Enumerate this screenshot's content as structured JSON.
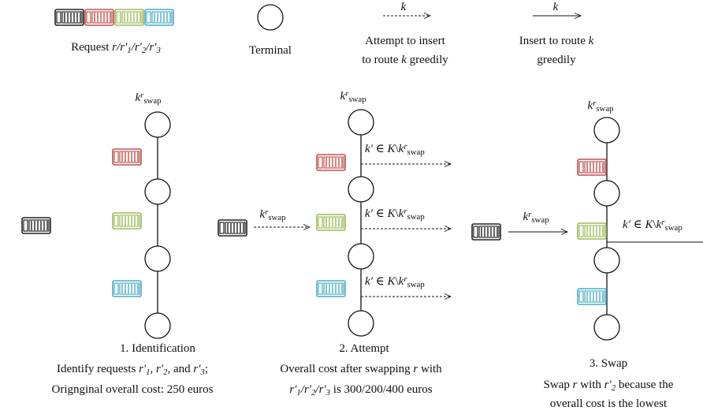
{
  "legend": {
    "request": [
      "Request ",
      "r",
      "/",
      "r'",
      "1",
      "/",
      "r'",
      "2",
      "/",
      "r'",
      "3"
    ],
    "terminal": "Terminal",
    "attempt": {
      "k": "k",
      "line1": "Attempt to insert",
      "line2": [
        "to route ",
        "k",
        " greedily"
      ]
    },
    "insert": {
      "k": "k",
      "line1": [
        "Insert to route ",
        "k"
      ],
      "line2": "greedily"
    }
  },
  "swap_route": [
    "k",
    "r",
    "swap"
  ],
  "other_routes": [
    "k'",
    " ∈ ",
    "K",
    "\\",
    "k",
    "r",
    "swap"
  ],
  "panels": [
    {
      "title": "1. Identification",
      "caption": [
        [
          "Identify requests ",
          "r'",
          "1",
          ", ",
          "r'",
          "2",
          ", and ",
          "r'",
          "3",
          ";"
        ],
        [
          "Orignginal overall cost: 250 euros"
        ]
      ]
    },
    {
      "title": "2. Attempt",
      "caption": [
        [
          "Overall cost after swapping ",
          "r",
          " with"
        ],
        [
          "r'",
          "1",
          "/",
          "r'",
          "2",
          "/",
          "r'",
          "3",
          " is 300/200/400 euros"
        ]
      ]
    },
    {
      "title": "3. Swap",
      "caption": [
        [
          "Swap ",
          "r",
          " with ",
          "r'",
          "2",
          " because the"
        ],
        [
          "overall cost is the lowest"
        ]
      ]
    }
  ]
}
